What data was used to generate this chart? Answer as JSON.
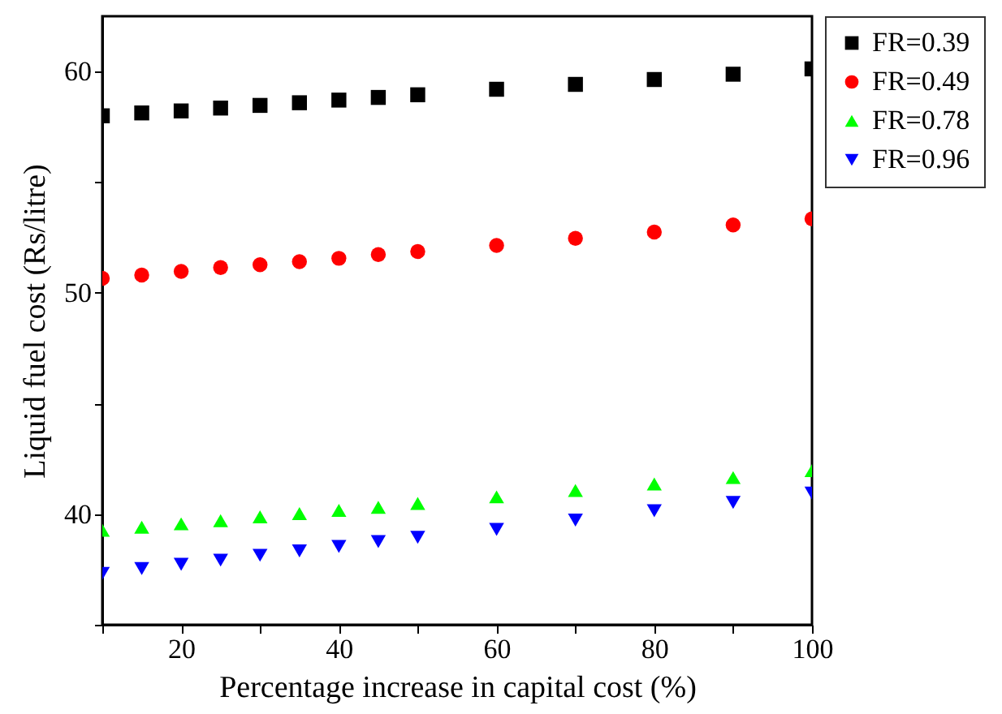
{
  "chart_data": {
    "type": "scatter",
    "xlabel": "Percentage increase in capital cost (%)",
    "ylabel": "Liquid fuel cost (Rs/litre)",
    "x": [
      10,
      15,
      20,
      25,
      30,
      35,
      40,
      45,
      50,
      60,
      70,
      80,
      90,
      100
    ],
    "xlim": [
      10,
      100
    ],
    "ylim": [
      35,
      62.5
    ],
    "xticks": [
      {
        "value": 10,
        "label": null
      },
      20,
      {
        "value": 30,
        "label": null
      },
      40,
      {
        "value": 50,
        "label": null
      },
      60,
      {
        "value": 70,
        "label": null
      },
      80,
      {
        "value": 90,
        "label": null
      },
      100
    ],
    "yticks": [
      {
        "value": 35,
        "label": null
      },
      40,
      {
        "value": 45,
        "label": null
      },
      50,
      {
        "value": 55,
        "label": null
      },
      60
    ],
    "grid": false,
    "legend": "top right",
    "series": [
      {
        "name": "FR=0.39",
        "color": "#000000",
        "marker": "square",
        "values": [
          58.0,
          58.13,
          58.22,
          58.35,
          58.47,
          58.59,
          58.71,
          58.83,
          58.95,
          59.2,
          59.42,
          59.64,
          59.88,
          60.12
        ]
      },
      {
        "name": "FR=0.49",
        "color": "#ff0000",
        "marker": "circle",
        "values": [
          50.66,
          50.8,
          50.97,
          51.14,
          51.27,
          51.41,
          51.56,
          51.73,
          51.87,
          52.14,
          52.46,
          52.75,
          53.07,
          53.34
        ]
      },
      {
        "name": "FR=0.78",
        "color": "#00ff00",
        "marker": "triangle",
        "values": [
          39.27,
          39.41,
          39.56,
          39.7,
          39.88,
          40.02,
          40.17,
          40.31,
          40.48,
          40.78,
          41.07,
          41.36,
          41.65,
          41.97
        ]
      },
      {
        "name": "FR=0.96",
        "color": "#0000ff",
        "marker": "triangle-down",
        "values": [
          37.32,
          37.54,
          37.73,
          37.92,
          38.14,
          38.34,
          38.54,
          38.76,
          38.95,
          39.31,
          39.73,
          40.15,
          40.53,
          40.95
        ]
      }
    ]
  }
}
